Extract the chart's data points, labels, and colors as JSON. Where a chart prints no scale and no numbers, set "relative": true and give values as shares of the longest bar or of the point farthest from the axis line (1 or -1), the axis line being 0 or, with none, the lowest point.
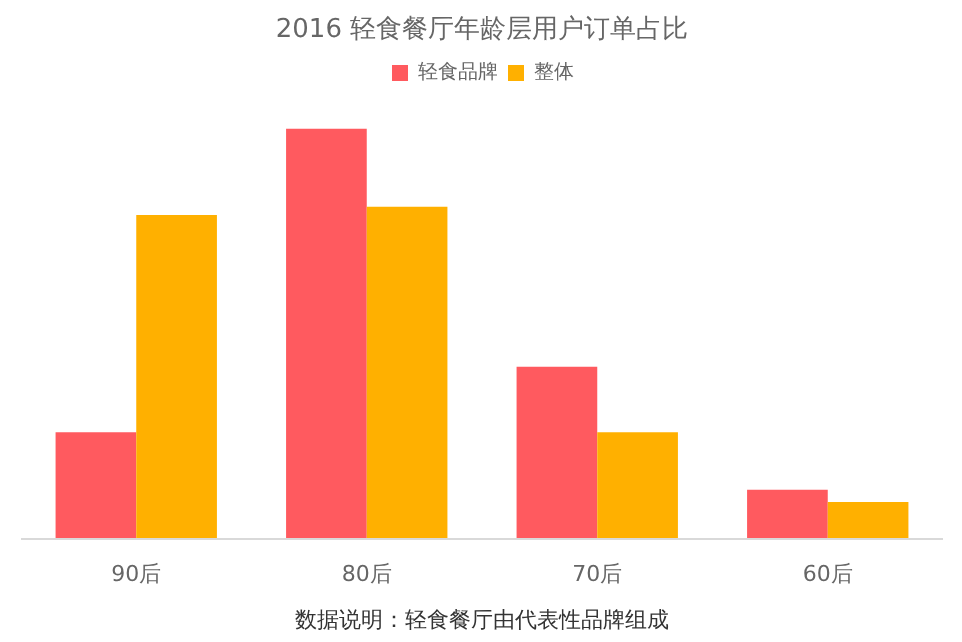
{
  "chart_data": {
    "type": "bar",
    "title": "2016 轻食餐厅年龄层用户订单占比",
    "categories": [
      "90后",
      "80后",
      "70后",
      "60后"
    ],
    "relative": true,
    "legend": "top",
    "series": [
      {
        "name": "轻食品牌",
        "color": "#ff5a5f",
        "values": [
          0.26,
          1,
          0.42,
          0.12
        ]
      },
      {
        "name": "整体",
        "color": "#ffb000",
        "values": [
          0.79,
          0.81,
          0.26,
          0.09
        ]
      }
    ],
    "annotations": [
      "数据说明：轻食餐厅由代表性品牌组成"
    ]
  }
}
